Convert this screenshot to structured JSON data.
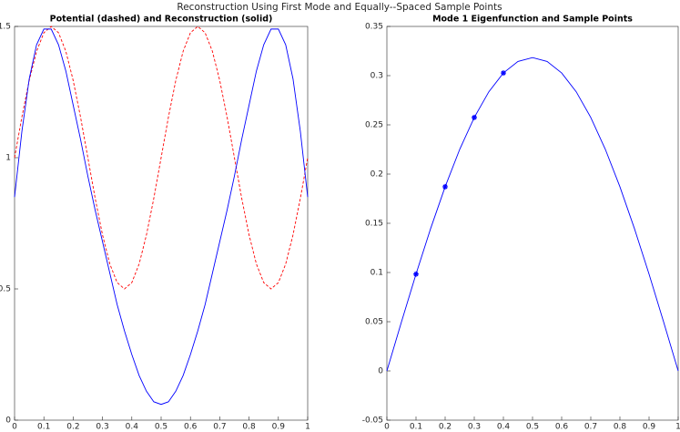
{
  "title": "Reconstruction Using First Mode and Equally--Spaced Sample Points",
  "chart_data": [
    {
      "type": "line",
      "title": "Potential (dashed) and Reconstruction (solid)",
      "x": [
        0,
        0.025,
        0.05,
        0.075,
        0.1,
        0.125,
        0.15,
        0.175,
        0.2,
        0.225,
        0.25,
        0.275,
        0.3,
        0.325,
        0.35,
        0.375,
        0.4,
        0.425,
        0.45,
        0.475,
        0.5,
        0.525,
        0.55,
        0.575,
        0.6,
        0.625,
        0.65,
        0.675,
        0.7,
        0.725,
        0.75,
        0.775,
        0.8,
        0.825,
        0.85,
        0.875,
        0.9,
        0.925,
        0.95,
        0.975,
        1
      ],
      "series": [
        {
          "color": "#ff0000",
          "dashed": true,
          "values": [
            1,
            1.155,
            1.294,
            1.405,
            1.476,
            1.5,
            1.476,
            1.405,
            1.294,
            1.155,
            1,
            0.845,
            0.706,
            0.595,
            0.524,
            0.5,
            0.524,
            0.595,
            0.706,
            0.845,
            1,
            1.155,
            1.294,
            1.405,
            1.476,
            1.5,
            1.476,
            1.405,
            1.294,
            1.155,
            1,
            0.845,
            0.706,
            0.595,
            0.524,
            0.5,
            0.524,
            0.595,
            0.706,
            0.845,
            1
          ]
        },
        {
          "color": "#0000ff",
          "dashed": false,
          "values": [
            0.85,
            1.1,
            1.3,
            1.43,
            1.49,
            1.49,
            1.43,
            1.33,
            1.2,
            1.07,
            0.93,
            0.8,
            0.68,
            0.56,
            0.44,
            0.34,
            0.25,
            0.17,
            0.11,
            0.07,
            0.06,
            0.07,
            0.11,
            0.17,
            0.25,
            0.34,
            0.44,
            0.56,
            0.68,
            0.8,
            0.93,
            1.07,
            1.2,
            1.33,
            1.43,
            1.49,
            1.49,
            1.43,
            1.3,
            1.1,
            0.85
          ]
        }
      ],
      "xlim": [
        0,
        1
      ],
      "xticks": [
        0,
        0.1,
        0.2,
        0.3,
        0.4,
        0.5,
        0.6,
        0.7,
        0.8,
        0.9,
        1
      ],
      "ylim": [
        0,
        1.5
      ],
      "yticks": [
        0,
        0.5,
        1,
        1.5
      ]
    },
    {
      "type": "line",
      "title": "Mode 1 Eigenfunction and Sample Points",
      "series": [
        {
          "color": "#0000ff",
          "dashed": false,
          "x": [
            0,
            0.05,
            0.1,
            0.15,
            0.2,
            0.25,
            0.3,
            0.35,
            0.4,
            0.45,
            0.5,
            0.55,
            0.6,
            0.65,
            0.7,
            0.75,
            0.8,
            0.85,
            0.9,
            0.95,
            1
          ],
          "values": [
            0,
            0.0498,
            0.0984,
            0.1445,
            0.1871,
            0.2251,
            0.2575,
            0.2836,
            0.3027,
            0.3144,
            0.3183,
            0.3144,
            0.3027,
            0.2836,
            0.2575,
            0.2251,
            0.1871,
            0.1445,
            0.0984,
            0.0498,
            0
          ]
        },
        {
          "color": "#0000ff",
          "marker": "*",
          "x": [
            0.1,
            0.2,
            0.3,
            0.4
          ],
          "values": [
            0.0984,
            0.1871,
            0.2575,
            0.3027
          ]
        }
      ],
      "xlim": [
        0,
        1
      ],
      "xticks": [
        0,
        0.1,
        0.2,
        0.3,
        0.4,
        0.5,
        0.6,
        0.7,
        0.8,
        0.9,
        1
      ],
      "ylim": [
        -0.05,
        0.35
      ],
      "yticks": [
        -0.05,
        0,
        0.05,
        0.1,
        0.15,
        0.2,
        0.25,
        0.3,
        0.35
      ]
    }
  ]
}
